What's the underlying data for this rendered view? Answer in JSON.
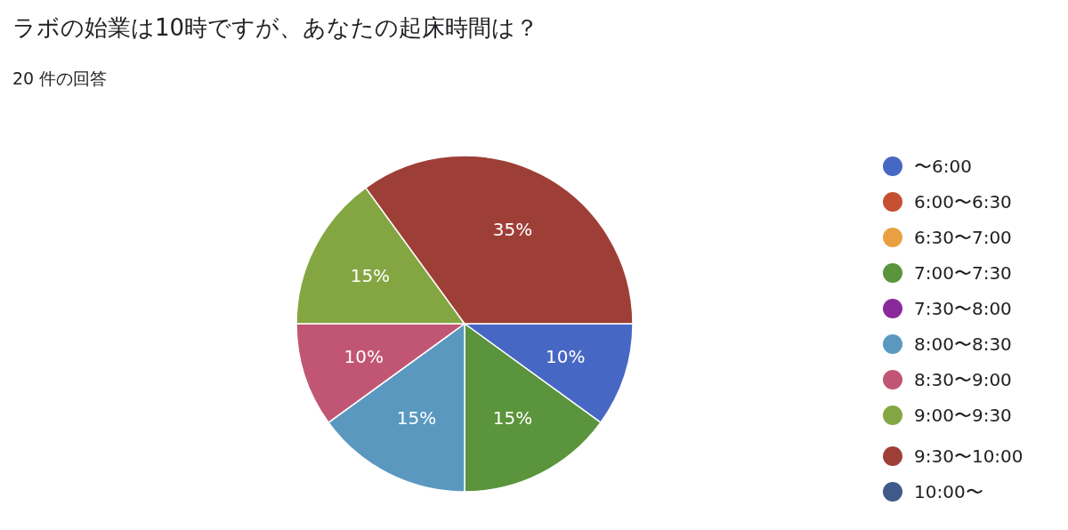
{
  "chart_data": {
    "type": "pie",
    "title": "ラボの始業は10時ですが、あなたの起床時間は？",
    "subtitle": "20 件の回答",
    "categories": [
      "〜6:00",
      "6:00〜6:30",
      "6:30〜7:00",
      "7:00〜7:30",
      "7:30〜8:00",
      "8:00〜8:30",
      "8:30〜9:00",
      "9:00〜9:30",
      "9:30〜10:00",
      "10:00〜"
    ],
    "values": [
      10,
      0,
      0,
      15,
      0,
      15,
      10,
      15,
      35,
      0
    ],
    "colors": [
      "#4767c4",
      "#c5502f",
      "#e9a043",
      "#5a943c",
      "#8a2a9a",
      "#5a98c0",
      "#c15674",
      "#84a642",
      "#9e3f37",
      "#3f5a8a"
    ],
    "value_labels": [
      "10%",
      null,
      null,
      "15%",
      null,
      "15%",
      "10%",
      "15%",
      "35%",
      null
    ],
    "legend": "right"
  }
}
